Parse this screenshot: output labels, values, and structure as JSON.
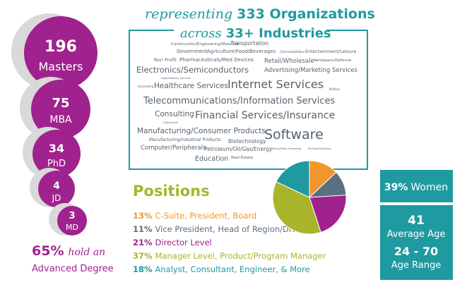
{
  "header": {
    "line1_prefix": "representing",
    "line1_emphasis": "333 Organizations",
    "line2_prefix": "across",
    "line2_emphasis": "33+ Industries"
  },
  "industries": [
    "Construction/Engineering/Materials",
    "Transportation",
    "Government",
    "Agriculture/Food/Beverages",
    "Chemicals",
    "Utilities",
    "Entertainment/Leisure",
    "Non Profit",
    "Pharmaceuticals/Med Devices",
    "Retail/Wholesale",
    "Aerospace/Defense",
    "Electronics/Semiconductors",
    "Advertising/Marketing Services",
    "Legal/Advisory Services",
    "Accounting",
    "Healthcare Services",
    "Internet Services",
    "Military",
    "Telecommunications/Information Services",
    "Consulting",
    "Financial Services/Insurance",
    "Cultural Arts",
    "Manufacturing/Consumer Products",
    "Software",
    "Manufacturing/Industrial Products",
    "Biotechnology",
    "Computer/Peripherals",
    "Petroleum/Oil/Gas/Energy",
    "Mining/Metal Processing",
    "Printing/Publishing",
    "Education",
    "Real Estate"
  ],
  "degrees": [
    {
      "count": 196,
      "label": "Masters"
    },
    {
      "count": 75,
      "label": "MBA"
    },
    {
      "count": 34,
      "label": "PhD"
    },
    {
      "count": 4,
      "label": "JD"
    },
    {
      "count": 3,
      "label": "MD"
    }
  ],
  "advanced": {
    "percent": "65%",
    "text": "hold an",
    "text2": "Advanced Degree"
  },
  "positions": {
    "title": "Positions",
    "items": [
      {
        "value": 13,
        "label": "13%",
        "text": "C-Suite, President, Board",
        "color": "#f0962c"
      },
      {
        "value": 11,
        "label": "11%",
        "text": "Vice President, Head of Region/Division",
        "color": "#5b6f82"
      },
      {
        "value": 21,
        "label": "21%",
        "text": "Director Level",
        "color": "#a0228e"
      },
      {
        "value": 37,
        "label": "37%",
        "text": "Manager Level, Product/Program Manager",
        "color": "#a8b52b"
      },
      {
        "value": 18,
        "label": "18%",
        "text": "Analyst, Consultant, Engineer, & More",
        "color": "#1f9aa0"
      }
    ]
  },
  "stats": {
    "women": {
      "percent": "39%",
      "label": "Women"
    },
    "age": {
      "value": 41,
      "label": "Average Age"
    },
    "range": {
      "value": "24 - 70",
      "label": "Age Range"
    }
  }
}
